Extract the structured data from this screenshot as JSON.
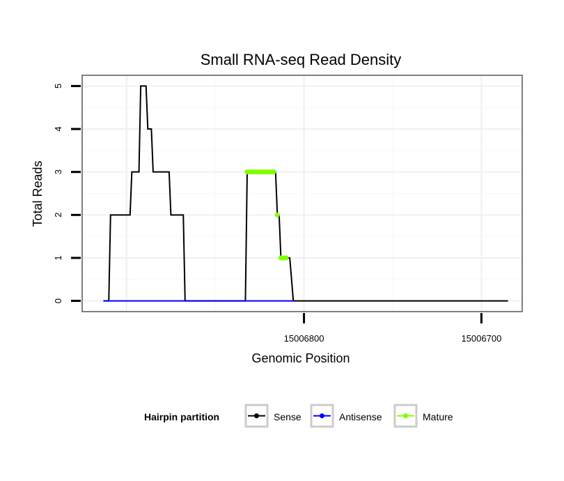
{
  "chart_data": {
    "type": "line",
    "title": "Small RNA-seq Read Density",
    "xlabel": "Genomic Position",
    "ylabel": "Total Reads",
    "xlim": [
      15006925,
      15006677
    ],
    "ylim": [
      -0.25,
      5.25
    ],
    "x_ticks": [
      15006800,
      15006700
    ],
    "x_tick_labels": [
      "15006800",
      "15006700"
    ],
    "y_ticks": [
      0,
      1,
      2,
      3,
      4,
      5
    ],
    "y_tick_labels": [
      "0",
      "1",
      "2",
      "3",
      "4",
      "5"
    ],
    "grid": true,
    "legend": {
      "title": "Hairpin partition",
      "position": "bottom",
      "entries": [
        {
          "label": "Sense",
          "color": "#000000"
        },
        {
          "label": "Antisense",
          "color": "#0000ff"
        },
        {
          "label": "Mature",
          "color": "#7fff00"
        }
      ]
    },
    "series": [
      {
        "name": "Sense",
        "color": "#000000",
        "x": [
          15006913,
          15006910,
          15006909,
          15006898,
          15006897,
          15006893,
          15006892,
          15006889,
          15006888,
          15006886,
          15006885,
          15006883,
          15006882,
          15006876,
          15006875,
          15006868,
          15006867,
          15006862,
          15006861,
          15006833,
          15006832,
          15006817,
          15006816,
          15006815,
          15006814,
          15006813,
          15006812,
          15006811,
          15006810,
          15006809,
          15006808,
          15006806,
          15006805,
          15006685
        ],
        "y": [
          0,
          0,
          2,
          2,
          3,
          3,
          5,
          5,
          4,
          4,
          3,
          3,
          3,
          3,
          2,
          2,
          0,
          0,
          0,
          0,
          3,
          3,
          3,
          2,
          2,
          1,
          1,
          1,
          1,
          1,
          1,
          0,
          0,
          0
        ]
      },
      {
        "name": "Antisense",
        "color": "#0000ff",
        "x": [
          15006913,
          15006806
        ],
        "y": [
          0,
          0
        ]
      },
      {
        "name": "Mature",
        "color": "#7fff00",
        "x": [
          15006832,
          15006831,
          15006830,
          15006829,
          15006828,
          15006827,
          15006826,
          15006825,
          15006824,
          15006823,
          15006822,
          15006821,
          15006820,
          15006819,
          15006818,
          15006817,
          15006815,
          15006813,
          15006812,
          15006811,
          15006810
        ],
        "y": [
          3,
          3,
          3,
          3,
          3,
          3,
          3,
          3,
          3,
          3,
          3,
          3,
          3,
          3,
          3,
          3,
          2,
          1,
          1,
          1,
          1
        ]
      }
    ]
  }
}
